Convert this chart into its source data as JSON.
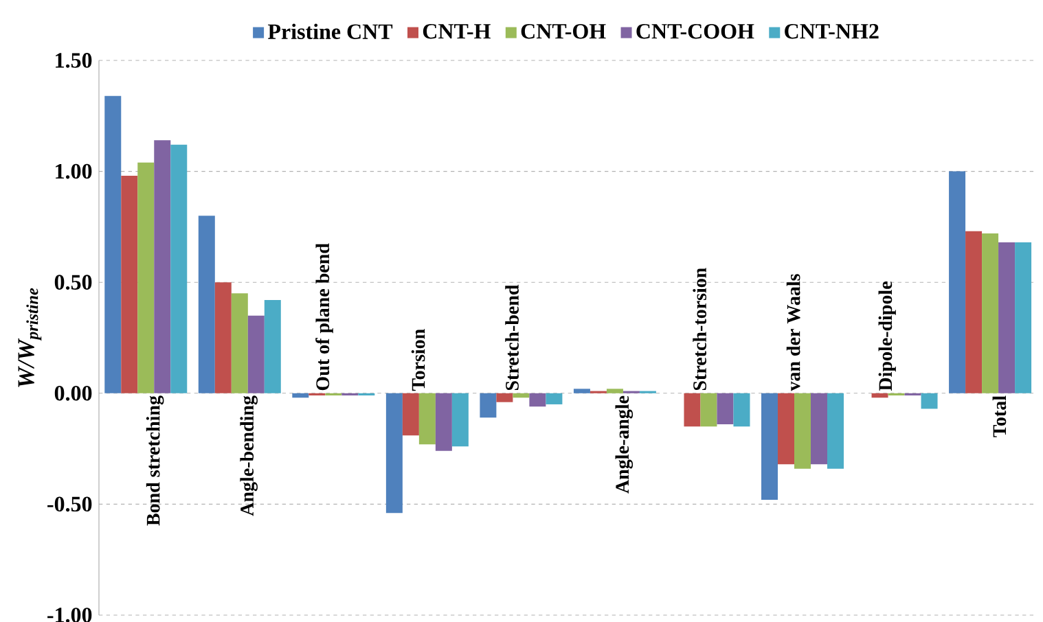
{
  "chart_data": {
    "type": "bar",
    "ylabel": "W/W$_{pristine}$",
    "categories": [
      "Bond stretching",
      "Angle-bending",
      "Out of plane bend",
      "Torsion",
      "Stretch-bend",
      "Angle-angle",
      "Stretch-torsion",
      "van der Waals",
      "Dipole-dipole",
      "Total"
    ],
    "series": [
      {
        "name": "Pristine CNT",
        "color": "#4f81bd",
        "values": [
          1.34,
          0.8,
          -0.02,
          -0.54,
          -0.11,
          0.02,
          0.0,
          -0.48,
          0.0,
          1.0
        ]
      },
      {
        "name": "CNT-H",
        "color": "#c0504d",
        "values": [
          0.98,
          0.5,
          -0.01,
          -0.19,
          -0.04,
          0.01,
          -0.15,
          -0.32,
          -0.02,
          0.73
        ]
      },
      {
        "name": "CNT-OH",
        "color": "#9bbb59",
        "values": [
          1.04,
          0.45,
          -0.01,
          -0.23,
          -0.02,
          0.02,
          -0.15,
          -0.34,
          -0.01,
          0.72
        ]
      },
      {
        "name": "CNT-COOH",
        "color": "#8064a2",
        "values": [
          1.14,
          0.35,
          -0.01,
          -0.26,
          -0.06,
          0.01,
          -0.14,
          -0.32,
          -0.01,
          0.68
        ]
      },
      {
        "name": "CNT-NH2",
        "color": "#4bacc6",
        "values": [
          1.12,
          0.42,
          -0.01,
          -0.24,
          -0.05,
          0.01,
          -0.15,
          -0.34,
          -0.07,
          0.68
        ]
      }
    ],
    "ylim": [
      -1.0,
      1.5
    ],
    "yticks": [
      {
        "value": -1.0,
        "label": "-1.00"
      },
      {
        "value": -0.5,
        "label": "-0.50"
      },
      {
        "value": 0.0,
        "label": "0.00"
      },
      {
        "value": 0.5,
        "label": "0.50"
      },
      {
        "value": 1.0,
        "label": "1.00"
      },
      {
        "value": 1.5,
        "label": "1.50"
      }
    ],
    "grid": "y",
    "legend": "top"
  }
}
